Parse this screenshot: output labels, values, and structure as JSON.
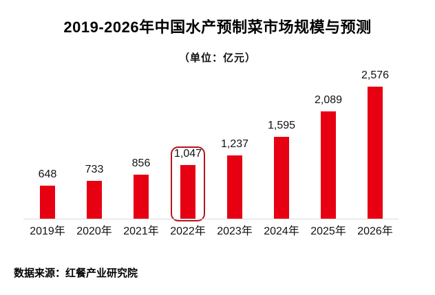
{
  "chart_data": {
    "type": "bar",
    "title": "2019-2026年中国水产预制菜市场规模与预测",
    "subtitle": "（单位：亿元）",
    "unit": "亿元",
    "categories": [
      "2019年",
      "2020年",
      "2021年",
      "2022年",
      "2023年",
      "2024年",
      "2025年",
      "2026年"
    ],
    "values": [
      648,
      733,
      856,
      1047,
      1237,
      1595,
      2089,
      2576
    ],
    "value_labels": [
      "648",
      "733",
      "856",
      "1,047",
      "1,237",
      "1,595",
      "2,089",
      "2,576"
    ],
    "highlight_index": 3,
    "highlighted_category": "2022年",
    "ylim": [
      0,
      2576
    ],
    "xlabel": "",
    "ylabel": "",
    "grid": false,
    "legend": "none",
    "bar_color": "#e60012",
    "highlight_border_color": "#b5121b",
    "axis_line_color": "#d9d9d9",
    "source": "数据来源：红餐产业研究院"
  }
}
